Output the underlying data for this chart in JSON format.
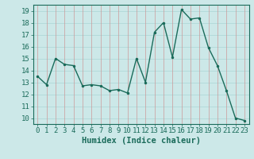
{
  "x": [
    0,
    1,
    2,
    3,
    4,
    5,
    6,
    7,
    8,
    9,
    10,
    11,
    12,
    13,
    14,
    15,
    16,
    17,
    18,
    19,
    20,
    21,
    22,
    23
  ],
  "y": [
    13.5,
    12.8,
    15.0,
    14.5,
    14.4,
    12.7,
    12.8,
    12.7,
    12.3,
    12.4,
    12.1,
    15.0,
    13.0,
    17.2,
    18.0,
    15.1,
    19.1,
    18.3,
    18.4,
    15.9,
    14.4,
    12.3,
    10.0,
    9.8
  ],
  "line_color": "#1a6b5a",
  "marker": ".",
  "marker_size": 3,
  "bg_color": "#cce8e8",
  "grid_color_h": "#aad4d4",
  "grid_color_v": "#cc9999",
  "xlabel": "Humidex (Indice chaleur)",
  "ylim": [
    9.5,
    19.5
  ],
  "yticks": [
    10,
    11,
    12,
    13,
    14,
    15,
    16,
    17,
    18,
    19
  ],
  "xticks": [
    0,
    1,
    2,
    3,
    4,
    5,
    6,
    7,
    8,
    9,
    10,
    11,
    12,
    13,
    14,
    15,
    16,
    17,
    18,
    19,
    20,
    21,
    22,
    23
  ],
  "xlim": [
    -0.5,
    23.5
  ],
  "tick_color": "#1a6b5a",
  "spine_color": "#1a6b5a",
  "label_fontsize": 7.5,
  "tick_fontsize": 6.5
}
